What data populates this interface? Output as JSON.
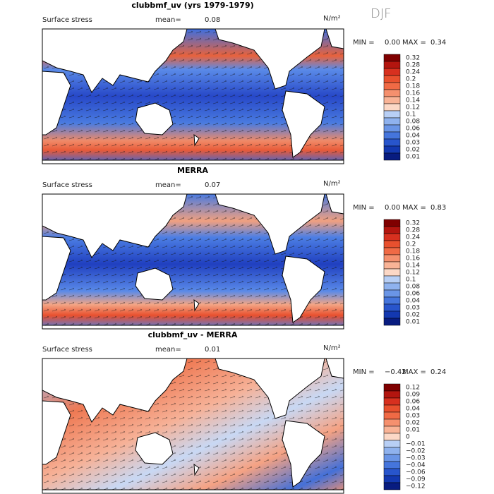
{
  "season": "DJF",
  "panels": [
    {
      "title": "clubbmf_uv (yrs 1979-1979)",
      "variable": "Surface stress",
      "mean_label": "mean=",
      "mean": "0.08",
      "units": "N/m²",
      "min_label": "MIN =",
      "min": "0.00",
      "max_label": "MAX =",
      "max": "0.34",
      "colorbar": [
        "0.32",
        "0.28",
        "0.24",
        "0.2",
        "0.18",
        "0.16",
        "0.14",
        "0.12",
        "0.1",
        "0.08",
        "0.06",
        "0.04",
        "0.03",
        "0.02",
        "0.01"
      ]
    },
    {
      "title": "MERRA",
      "variable": "Surface stress",
      "mean_label": "mean=",
      "mean": "0.07",
      "units": "N/m²",
      "min_label": "MIN =",
      "min": "0.00",
      "max_label": "MAX =",
      "max": "0.83",
      "colorbar": [
        "0.32",
        "0.28",
        "0.24",
        "0.2",
        "0.18",
        "0.16",
        "0.14",
        "0.12",
        "0.1",
        "0.08",
        "0.06",
        "0.04",
        "0.03",
        "0.02",
        "0.01"
      ]
    },
    {
      "title": "clubbmf_uv - MERRA",
      "variable": "Surface stress",
      "mean_label": "mean=",
      "mean": "0.01",
      "units": "N/m²",
      "min_label": "MIN =",
      "min": "−0.42",
      "max_label": "MAX =",
      "max": "0.24",
      "colorbar": [
        "0.12",
        "0.09",
        "0.06",
        "0.04",
        "0.03",
        "0.02",
        "0.01",
        "0",
        "−0.01",
        "−0.02",
        "−0.03",
        "−0.04",
        "−0.06",
        "−0.09",
        "−0.12"
      ]
    }
  ]
}
